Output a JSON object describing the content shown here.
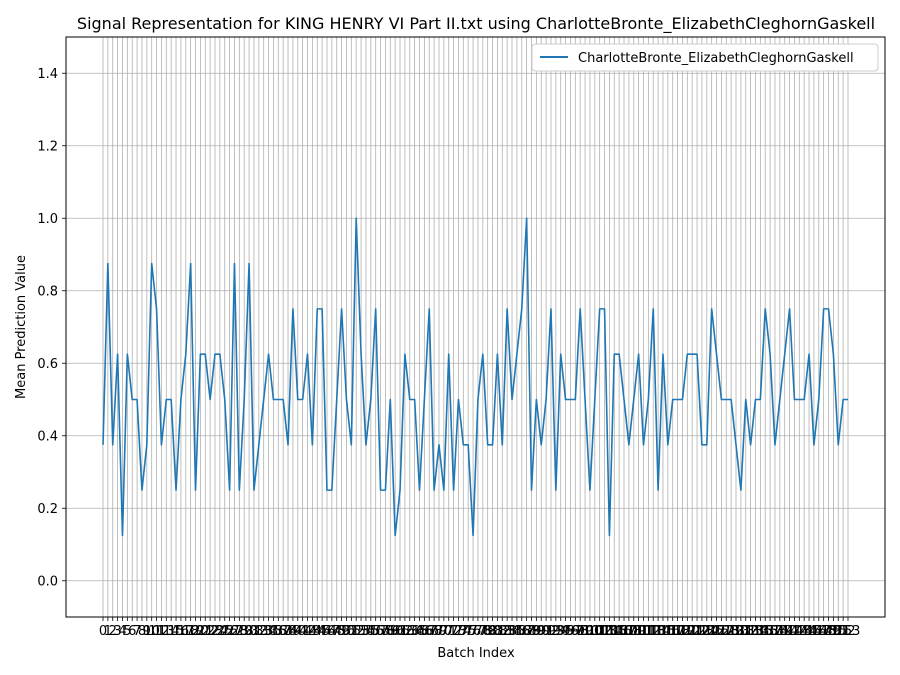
{
  "chart_data": {
    "type": "line",
    "title": "Signal Representation for KING HENRY VI Part II.txt using CharlotteBronte_ElizabethCleghornGaskell",
    "xlabel": "Batch Index",
    "ylabel": "Mean Prediction Value",
    "ylim": [
      -0.1,
      1.5
    ],
    "yticks": [
      0.0,
      0.2,
      0.4,
      0.6,
      0.8,
      1.0,
      1.2,
      1.4
    ],
    "grid": true,
    "legend_position": "top-right",
    "series": [
      {
        "name": "CharlotteBronte_ElizabethCleghornGaskell",
        "color": "#1f77b4",
        "values": [
          0.375,
          0.875,
          0.375,
          0.625,
          0.125,
          0.625,
          0.5,
          0.5,
          0.25,
          0.375,
          0.875,
          0.75,
          0.375,
          0.5,
          0.5,
          0.25,
          0.5,
          0.625,
          0.875,
          0.25,
          0.625,
          0.625,
          0.5,
          0.625,
          0.625,
          0.5,
          0.25,
          0.875,
          0.25,
          0.5,
          0.875,
          0.25,
          0.375,
          0.5,
          0.625,
          0.5,
          0.5,
          0.5,
          0.375,
          0.75,
          0.5,
          0.5,
          0.625,
          0.375,
          0.75,
          0.75,
          0.25,
          0.25,
          0.5,
          0.75,
          0.5,
          0.375,
          1.0,
          0.625,
          0.375,
          0.5,
          0.75,
          0.25,
          0.25,
          0.5,
          0.125,
          0.25,
          0.625,
          0.5,
          0.5,
          0.25,
          0.5,
          0.75,
          0.25,
          0.375,
          0.25,
          0.625,
          0.25,
          0.5,
          0.375,
          0.375,
          0.125,
          0.5,
          0.625,
          0.375,
          0.375,
          0.625,
          0.375,
          0.75,
          0.5,
          0.625,
          0.75,
          1.0,
          0.25,
          0.5,
          0.375,
          0.5,
          0.75,
          0.25,
          0.625,
          0.5,
          0.5,
          0.5,
          0.75,
          0.5,
          0.25,
          0.5,
          0.75,
          0.75,
          0.125,
          0.625,
          0.625,
          0.5,
          0.375,
          0.5,
          0.625,
          0.375,
          0.5,
          0.75,
          0.25,
          0.625,
          0.375,
          0.5,
          0.5,
          0.5,
          0.625,
          0.625,
          0.625,
          0.375,
          0.375,
          0.75,
          0.625,
          0.5,
          0.5,
          0.5,
          0.375,
          0.25,
          0.5,
          0.375,
          0.5,
          0.5,
          0.75,
          0.625,
          0.375,
          0.5,
          0.625,
          0.75,
          0.5,
          0.5,
          0.5,
          0.625,
          0.375,
          0.5,
          0.75,
          0.75,
          0.625,
          0.375,
          0.5,
          0.5
        ]
      }
    ],
    "x_start": 0
  }
}
